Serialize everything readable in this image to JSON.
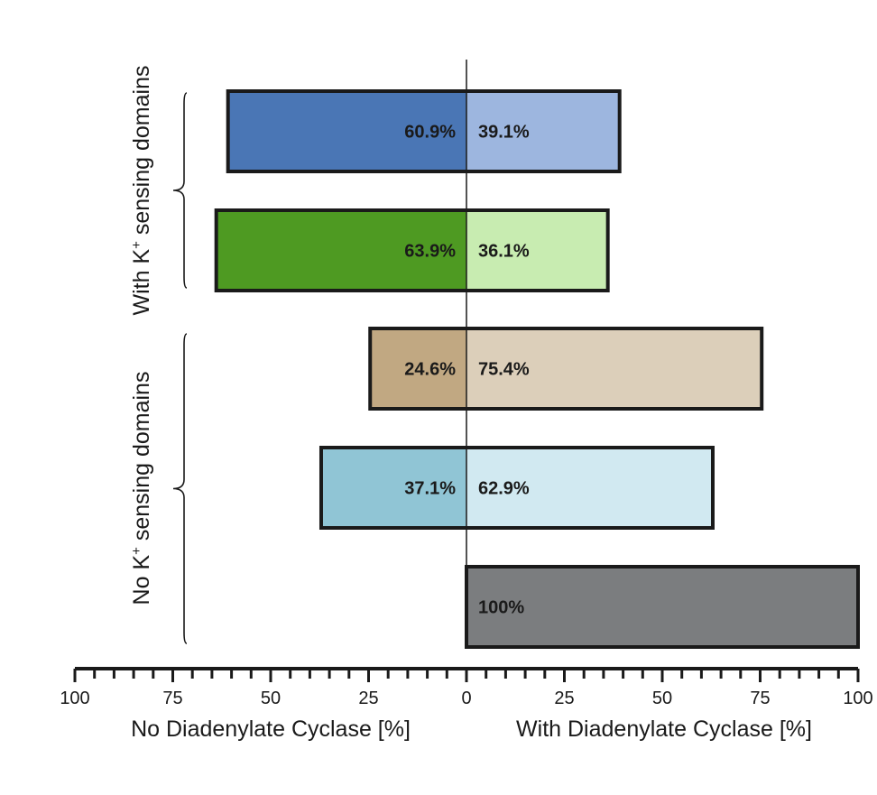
{
  "chart_data": {
    "type": "bar",
    "orientation": "horizontal-diverging",
    "rows": [
      {
        "no": 60.9,
        "with": 39.1,
        "no_label": "60.9%",
        "with_label": "39.1%",
        "no_color": "#4a76b5",
        "with_color": "#9db6df",
        "group": "with_k"
      },
      {
        "no": 63.9,
        "with": 36.1,
        "no_label": "63.9%",
        "with_label": "36.1%",
        "no_color": "#4e9a22",
        "with_color": "#c8ecb1",
        "group": "with_k"
      },
      {
        "no": 24.6,
        "with": 75.4,
        "no_label": "24.6%",
        "with_label": "75.4%",
        "no_color": "#c1a882",
        "with_color": "#dccfba",
        "group": "no_k"
      },
      {
        "no": 37.1,
        "with": 62.9,
        "no_label": "37.1%",
        "with_label": "62.9%",
        "no_color": "#90c5d5",
        "with_color": "#d1e9f1",
        "group": "no_k"
      },
      {
        "no": 0,
        "with": 100,
        "no_label": "",
        "with_label": "100%",
        "no_color": "#ffffff",
        "with_color": "#7b7d7f",
        "group": "no_k"
      }
    ],
    "axis": {
      "range": [
        0,
        100
      ],
      "left_ticks": [
        "100",
        "75",
        "50",
        "25"
      ],
      "center_tick": "0",
      "right_ticks": [
        "25",
        "50",
        "75",
        "100"
      ],
      "left_title": "No Diadenylate Cyclase [%]",
      "right_title": "With Diadenylate Cyclase [%]"
    },
    "groups": {
      "with_k": {
        "label_pre": "With K",
        "label_sup": "+",
        "label_post": " sensing domains"
      },
      "no_k": {
        "label_pre": "No K",
        "label_sup": "+",
        "label_post": " sensing domains"
      }
    }
  }
}
